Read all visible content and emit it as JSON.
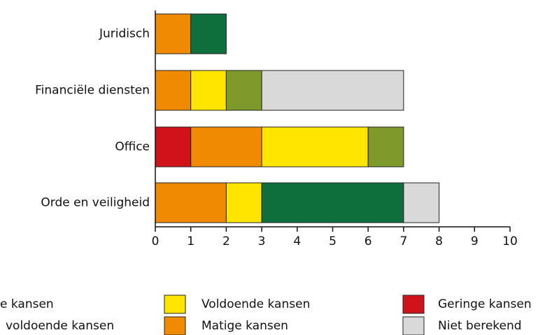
{
  "chart_data": {
    "type": "stacked_bar_horizontal",
    "categories": [
      "Juridisch",
      "Financiële diensten",
      "Office",
      "Orde en veiligheid"
    ],
    "series": [
      {
        "name": "Geringe kansen",
        "color": "#d0121b",
        "values": [
          0,
          0,
          1,
          0
        ]
      },
      {
        "name": "Matige kansen",
        "color": "#f08a00",
        "values": [
          1,
          1,
          2,
          2
        ]
      },
      {
        "name": "Voldoende kansen",
        "color": "#ffe500",
        "values": [
          0,
          1,
          3,
          1
        ]
      },
      {
        "name": "voldoende kansen",
        "color": "#7e9a2a",
        "values": [
          0,
          1,
          1,
          0
        ]
      },
      {
        "name": "e kansen",
        "color": "#0e6e3c",
        "values": [
          1,
          0,
          0,
          4
        ]
      },
      {
        "name": "Niet berekend",
        "color": "#d9d9d9",
        "values": [
          0,
          4,
          0,
          1
        ]
      }
    ],
    "xlim": [
      0,
      10
    ],
    "xticks": [
      0,
      1,
      2,
      3,
      4,
      5,
      6,
      7,
      8,
      9,
      10
    ]
  }
}
